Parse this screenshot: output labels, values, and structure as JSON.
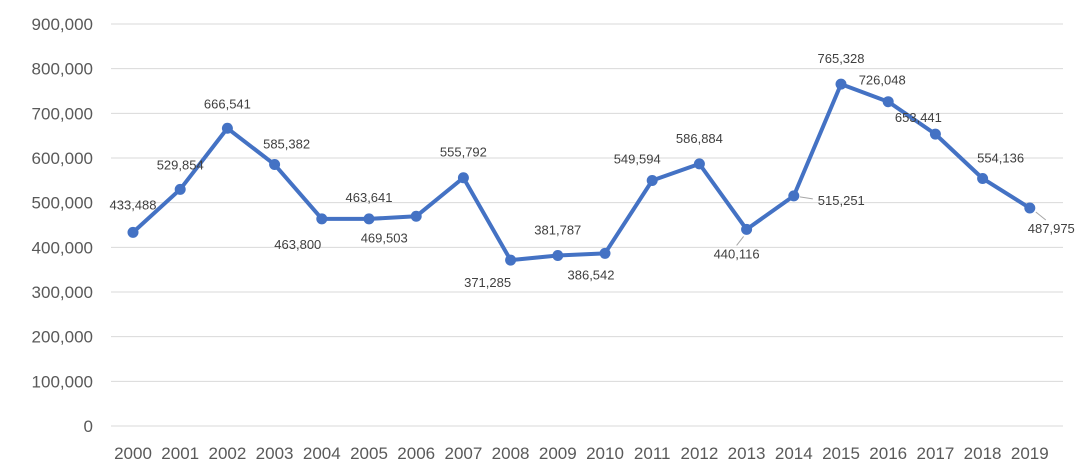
{
  "chart_data": {
    "type": "line",
    "title": "",
    "xlabel": "",
    "ylabel": "",
    "grid": true,
    "ylim": [
      0,
      900000
    ],
    "yticks": [
      0,
      100000,
      200000,
      300000,
      400000,
      500000,
      600000,
      700000,
      800000,
      900000
    ],
    "ytick_labels": [
      "0",
      "100,000",
      "200,000",
      "300,000",
      "400,000",
      "500,000",
      "600,000",
      "700,000",
      "800,000",
      "900,000"
    ],
    "categories": [
      "2000",
      "2001",
      "2002",
      "2003",
      "2004",
      "2005",
      "2006",
      "2007",
      "2008",
      "2009",
      "2010",
      "2011",
      "2012",
      "2013",
      "2014",
      "2015",
      "2016",
      "2017",
      "2018",
      "2019"
    ],
    "series": [
      {
        "color": "#4472C4",
        "values": [
          433488,
          529854,
          666541,
          585382,
          463800,
          463641,
          469503,
          555792,
          371285,
          381787,
          386542,
          549594,
          586884,
          440116,
          515251,
          765328,
          726048,
          653441,
          554136,
          487975
        ],
        "data_labels": [
          "433,488",
          "529,854",
          "666,541",
          "585,382",
          "463,800",
          "463,641",
          "469,503",
          "555,792",
          "371,285",
          "381,787",
          "386,542",
          "549,594",
          "586,884",
          "440,116",
          "515,251",
          "765,328",
          "726,048",
          "653,441",
          "554,136",
          "487,975"
        ]
      }
    ],
    "colors": {
      "line": "#4472C4",
      "grid": "#D9D9D9",
      "axis_text": "#595959",
      "label_text": "#404040",
      "leader": "#A6A6A6"
    }
  }
}
